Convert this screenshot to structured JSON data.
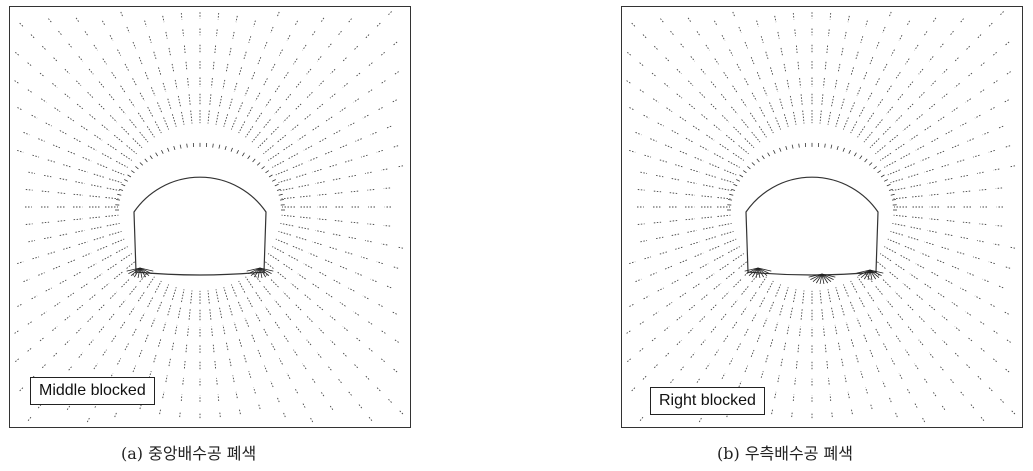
{
  "panels": [
    {
      "id": "a",
      "legend": "Middle blocked",
      "caption": "(a) 중앙배수공 폐색",
      "blocked_drain": "middle"
    },
    {
      "id": "b",
      "legend": "Right blocked",
      "caption": "(b) 우측배수공 폐색",
      "blocked_drain": "right"
    }
  ],
  "colors": {
    "line": "#333333",
    "vector": "#444444",
    "background": "#ffffff"
  }
}
